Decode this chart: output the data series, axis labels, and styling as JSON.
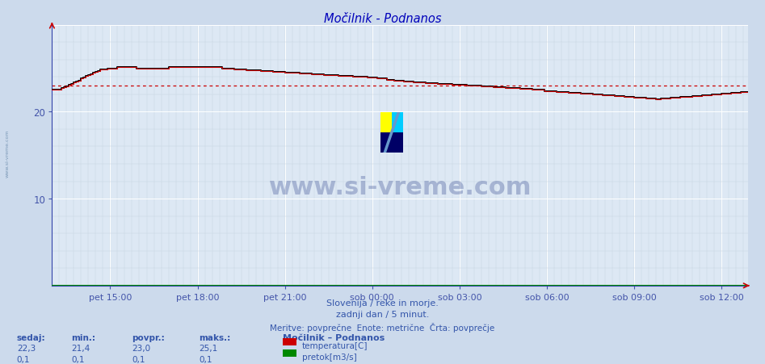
{
  "title": "Močilnik - Podnanos",
  "bg_color": "#ccdaec",
  "plot_bg_color": "#dde8f4",
  "grid_major_color": "#ffffff",
  "grid_minor_color": "#c4d0e0",
  "title_color": "#0000bb",
  "tick_color": "#4455aa",
  "text_color": "#3355aa",
  "temp_color": "#cc0000",
  "temp_color2": "#000000",
  "flow_color": "#008800",
  "avg_color": "#cc0000",
  "spine_color": "#3344aa",
  "ylim": [
    0,
    30
  ],
  "yticks": [
    10,
    20
  ],
  "xtick_positions": [
    24,
    60,
    96,
    132,
    168,
    204,
    240,
    276
  ],
  "xtick_labels": [
    "pet 15:00",
    "pet 18:00",
    "pet 21:00",
    "sob 00:00",
    "sob 03:00",
    "sob 06:00",
    "sob 09:00",
    "sob 12:00"
  ],
  "avg_temp": 23.0,
  "footer1": "Slovenija / reke in morje.",
  "footer2": "zadnji dan / 5 minut.",
  "footer3": "Meritve: povprečne  Enote: metrične  Črta: povprečje",
  "legend_title": "Močilnik – Podnanos",
  "leg_temp": "temperatura[C]",
  "leg_flow": "pretok[m3/s]",
  "hdr_sedaj": "sedaj:",
  "hdr_min": "min.:",
  "hdr_povpr": "povpr.:",
  "hdr_maks": "maks.:",
  "temp_sedaj": "22,3",
  "temp_min": "21,4",
  "temp_povpr": "23,0",
  "temp_maks": "25,1",
  "flow_sedaj": "0,1",
  "flow_min": "0,1",
  "flow_povpr": "0,1",
  "flow_maks": "0,1",
  "watermark": "www.si-vreme.com",
  "n_points": 288
}
